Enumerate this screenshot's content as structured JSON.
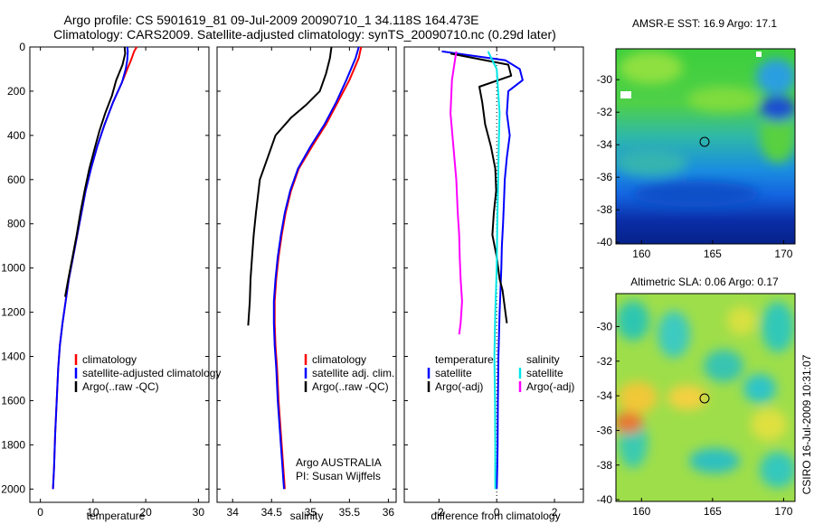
{
  "title": {
    "line1": "Argo profile: CS 5901619_81 09-Jul-2009 20090710_1 34.118S 164.473E",
    "line2": "Climatology: CARS2009. Satellite-adjusted climatology: synTS_20090710.nc (0.29d later)"
  },
  "credit": "CSIRO 16-Jul-2009 10:31:07",
  "colors": {
    "red": "#ff0000",
    "blue": "#0000ff",
    "black": "#000000",
    "cyan": "#00e6e6",
    "magenta": "#ff00ff"
  },
  "chart_data": [
    {
      "type": "line",
      "xlabel": "temperature",
      "xlim": [
        -2,
        32
      ],
      "xticks": [
        0,
        10,
        20,
        30
      ],
      "ylim": [
        2060,
        0
      ],
      "yticks": [
        0,
        200,
        400,
        600,
        800,
        1000,
        1200,
        1400,
        1600,
        1800,
        2000
      ],
      "legend": {
        "position": "lower-right",
        "entries": [
          "climatology",
          "satellite-adjusted climatology",
          "Argo(..raw -QC)"
        ]
      },
      "series": [
        {
          "name": "climatology",
          "color": "#ff0000",
          "x": [
            18.3,
            17.8,
            17.2,
            16.5,
            15.5,
            13.8,
            12.2,
            10.8,
            9.6,
            8.6,
            7.8,
            7.0,
            6.2,
            5.4,
            4.8,
            4.2,
            3.7,
            3.4,
            3.1,
            2.8,
            2.6,
            2.4
          ],
          "y": [
            0,
            20,
            60,
            100,
            160,
            250,
            350,
            450,
            550,
            650,
            750,
            850,
            950,
            1050,
            1150,
            1250,
            1350,
            1450,
            1600,
            1750,
            1900,
            2000
          ]
        },
        {
          "name": "satellite-adjusted climatology",
          "color": "#0000ff",
          "x": [
            16.5,
            16.6,
            16.5,
            16.2,
            15.5,
            13.8,
            12.2,
            10.8,
            9.6,
            8.6,
            7.8,
            7.0,
            6.2,
            5.4,
            4.8,
            4.2,
            3.7,
            3.4,
            3.1,
            2.8,
            2.6,
            2.4
          ],
          "y": [
            0,
            20,
            60,
            100,
            160,
            250,
            350,
            450,
            550,
            650,
            750,
            850,
            950,
            1050,
            1150,
            1250,
            1350,
            1450,
            1600,
            1750,
            1900,
            2000
          ]
        },
        {
          "name": "Argo(..raw -QC)",
          "color": "#000000",
          "x": [
            16.0,
            16.1,
            15.6,
            14.4,
            13.6,
            12.3,
            11.2,
            10.3,
            9.3,
            8.4,
            7.6,
            6.9,
            6.1,
            5.3,
            4.7
          ],
          "y": [
            0,
            30,
            80,
            150,
            220,
            300,
            380,
            460,
            550,
            650,
            750,
            850,
            950,
            1050,
            1130
          ]
        }
      ]
    },
    {
      "type": "line",
      "xlabel": "salinity",
      "xlim": [
        33.8,
        36.1
      ],
      "xticks": [
        34,
        34.5,
        35,
        35.5,
        36
      ],
      "ylim": [
        2060,
        0
      ],
      "legend": {
        "position": "lower-right",
        "entries": [
          "climatology",
          "satellite adj. clim.",
          "Argo(..raw -QC)"
        ]
      },
      "annotations": [
        "Argo AUSTRALIA",
        "PI: Susan Wijffels"
      ],
      "series": [
        {
          "name": "climatology",
          "color": "#ff0000",
          "x": [
            35.65,
            35.62,
            35.5,
            35.35,
            35.2,
            35.02,
            34.85,
            34.75,
            34.68,
            34.63,
            34.59,
            34.56,
            34.54,
            34.54,
            34.55,
            34.57,
            34.59,
            34.62,
            34.65,
            34.67
          ],
          "y": [
            0,
            50,
            150,
            250,
            350,
            450,
            550,
            650,
            750,
            850,
            950,
            1050,
            1150,
            1250,
            1350,
            1450,
            1600,
            1750,
            1900,
            2000
          ]
        },
        {
          "name": "satellite adj. clim.",
          "color": "#0000ff",
          "x": [
            35.62,
            35.58,
            35.46,
            35.33,
            35.18,
            35.0,
            34.84,
            34.74,
            34.67,
            34.62,
            34.58,
            34.55,
            34.53,
            34.53,
            34.54,
            34.56,
            34.58,
            34.61,
            34.64,
            34.66
          ],
          "y": [
            0,
            50,
            150,
            250,
            350,
            450,
            550,
            650,
            750,
            850,
            950,
            1050,
            1150,
            1250,
            1350,
            1450,
            1600,
            1750,
            1900,
            2000
          ]
        },
        {
          "name": "Argo(..raw -QC)",
          "color": "#000000",
          "x": [
            35.27,
            35.25,
            35.2,
            35.12,
            34.95,
            34.75,
            34.55,
            34.45,
            34.35,
            34.3,
            34.27,
            34.25,
            34.23,
            34.22,
            34.2
          ],
          "y": [
            0,
            50,
            120,
            200,
            260,
            320,
            400,
            500,
            600,
            750,
            850,
            950,
            1050,
            1150,
            1260
          ]
        }
      ]
    },
    {
      "type": "line",
      "xlabel": "difference from climatology",
      "xlim": [
        -3.2,
        3.0
      ],
      "xticks": [
        -2,
        0,
        2
      ],
      "ylim": [
        2060,
        0
      ],
      "legend": {
        "position": "lower-center",
        "entries": [
          "temperature",
          "satellite",
          "Argo(-adj)",
          "salinity",
          "satellite",
          "Argo(-adj)"
        ]
      },
      "series": [
        {
          "name": "satellite",
          "group": "temperature",
          "color": "#0000ff",
          "x": [
            -1.9,
            0.3,
            0.8,
            0.9,
            0.4,
            0.35,
            0.45,
            0.35,
            0.28,
            0.25,
            0.22,
            0.18,
            0.16,
            0.1,
            0.06,
            0.04,
            0.03,
            0.02,
            0.0
          ],
          "y": [
            20,
            60,
            100,
            150,
            200,
            300,
            400,
            500,
            600,
            700,
            800,
            900,
            1000,
            1200,
            1400,
            1600,
            1800,
            1900,
            2000
          ]
        },
        {
          "name": "Argo(-adj)",
          "group": "temperature",
          "color": "#000000",
          "x": [
            -1.6,
            0.4,
            0.5,
            -0.6,
            -0.5,
            -0.4,
            -0.2,
            -0.05,
            -0.02,
            -0.1,
            -0.15,
            0.0,
            0.1,
            0.2,
            0.25,
            0.3,
            0.35
          ],
          "y": [
            30,
            80,
            130,
            180,
            250,
            350,
            450,
            550,
            650,
            750,
            850,
            950,
            1050,
            1100,
            1150,
            1200,
            1250
          ]
        },
        {
          "name": "satellite",
          "group": "salinity",
          "color": "#00e6e6",
          "x": [
            -0.3,
            0.0,
            0.05,
            0.1,
            0.08,
            0.05,
            0.02,
            0.0,
            -0.05,
            -0.08,
            -0.06,
            -0.05,
            -0.05
          ],
          "y": [
            20,
            100,
            200,
            300,
            400,
            600,
            800,
            1000,
            1200,
            1400,
            1600,
            1800,
            2000
          ]
        },
        {
          "name": "Argo(-adj)",
          "group": "salinity",
          "color": "#ff00ff",
          "x": [
            -1.4,
            -1.55,
            -1.6,
            -1.5,
            -1.4,
            -1.35,
            -1.3,
            -1.28,
            -1.25,
            -1.2,
            -1.25,
            -1.3
          ],
          "y": [
            20,
            150,
            300,
            450,
            600,
            750,
            850,
            950,
            1050,
            1150,
            1250,
            1300
          ]
        }
      ]
    },
    {
      "type": "heatmap",
      "title": "AMSR-E SST: 16.9 Argo: 17.1",
      "xlim": [
        158.2,
        170.8
      ],
      "ylim": [
        -40.1,
        -28.1
      ],
      "xticks": [
        160,
        165,
        170
      ],
      "yticks": [
        -30,
        -32,
        -34,
        -36,
        -38,
        -40
      ],
      "marker": {
        "x": 164.473,
        "y": -34.118
      }
    },
    {
      "type": "heatmap",
      "title": "Altimetric SLA: 0.06 Argo: 0.17",
      "xlim": [
        158.2,
        170.8
      ],
      "ylim": [
        -40.1,
        -28.1
      ],
      "xticks": [
        160,
        165,
        170
      ],
      "yticks": [
        -30,
        -32,
        -34,
        -36,
        -38,
        -40
      ],
      "marker": {
        "x": 164.473,
        "y": -34.118
      }
    }
  ]
}
